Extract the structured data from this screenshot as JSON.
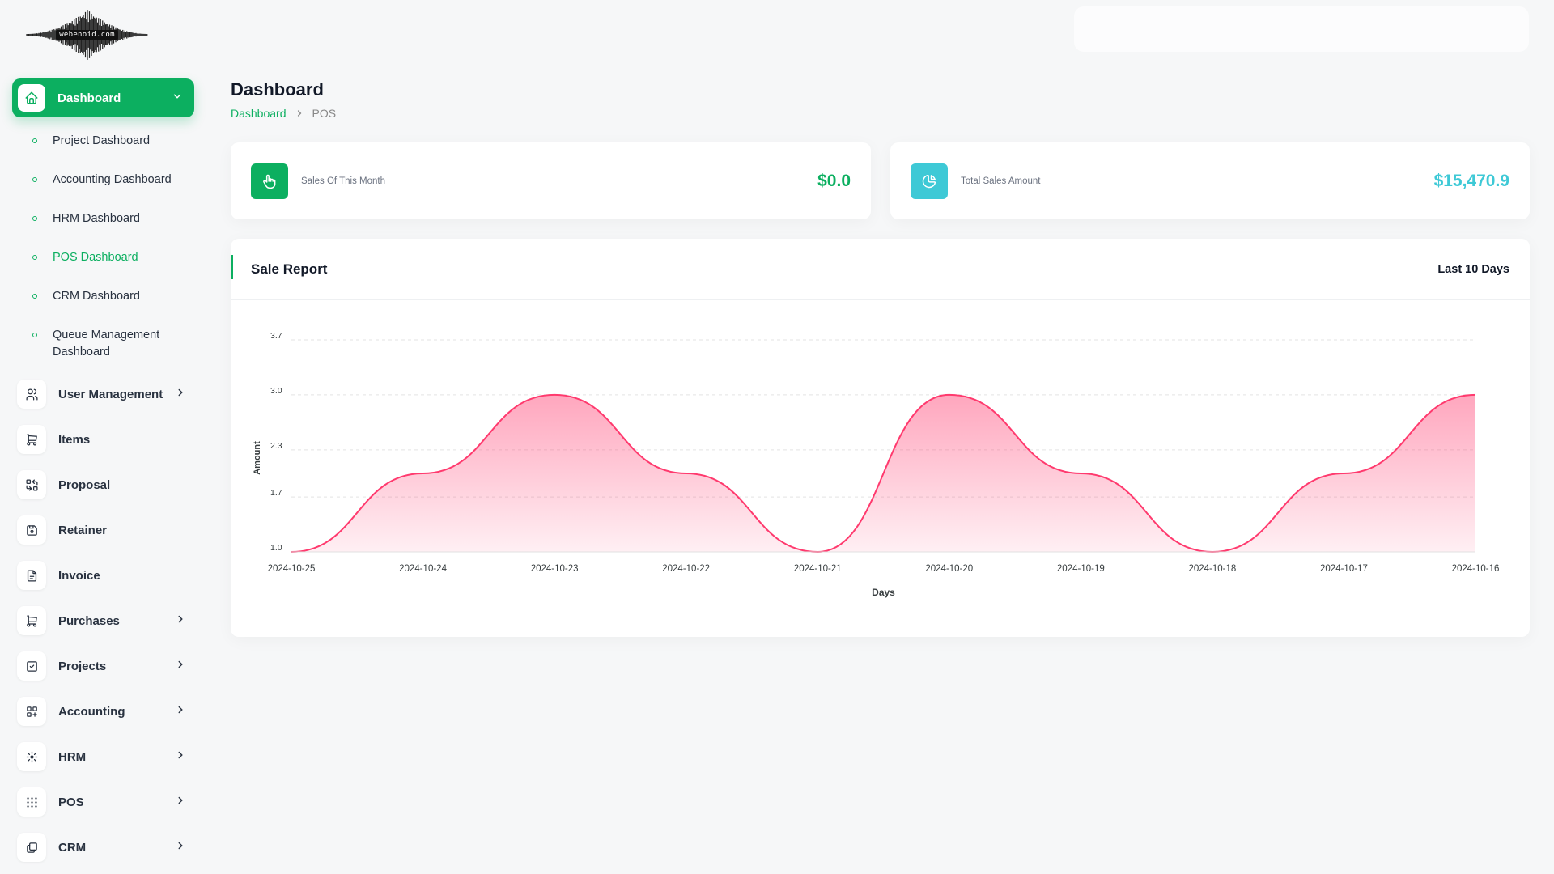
{
  "logo": {
    "text": "webenoid.com"
  },
  "sidebar": {
    "active": {
      "label": "Dashboard",
      "icon": "home-icon"
    },
    "sub_items": [
      {
        "label": "Project Dashboard"
      },
      {
        "label": "Accounting Dashboard"
      },
      {
        "label": "HRM Dashboard"
      },
      {
        "label": "POS Dashboard",
        "active": true
      },
      {
        "label": "CRM Dashboard"
      },
      {
        "label": "Queue Management Dashboard"
      }
    ],
    "items": [
      {
        "label": "User Management",
        "icon": "users-icon",
        "has_children": true
      },
      {
        "label": "Items",
        "icon": "cart-icon",
        "has_children": false
      },
      {
        "label": "Proposal",
        "icon": "replace-icon",
        "has_children": false
      },
      {
        "label": "Retainer",
        "icon": "save-icon",
        "has_children": false
      },
      {
        "label": "Invoice",
        "icon": "file-invoice-icon",
        "has_children": false
      },
      {
        "label": "Purchases",
        "icon": "shopping-cart-icon",
        "has_children": true
      },
      {
        "label": "Projects",
        "icon": "checkbox-icon",
        "has_children": true
      },
      {
        "label": "Accounting",
        "icon": "layout-grid-add-icon",
        "has_children": true
      },
      {
        "label": "HRM",
        "icon": "hrm-icon",
        "has_children": true
      },
      {
        "label": "POS",
        "icon": "grid-dots-icon",
        "has_children": true
      },
      {
        "label": "CRM",
        "icon": "layers-icon",
        "has_children": true
      }
    ]
  },
  "header": {
    "title": "Dashboard",
    "breadcrumb": {
      "home": "Dashboard",
      "current": "POS"
    }
  },
  "stats": [
    {
      "label": "Sales Of This Month",
      "value": "$0.0",
      "color": "#0caf60",
      "icon": "hand-finger-icon"
    },
    {
      "label": "Total Sales Amount",
      "value": "$15,470.9",
      "color": "#3ec9d6",
      "icon": "pie-chart-icon"
    }
  ],
  "report": {
    "title": "Sale Report",
    "filter": "Last 10 Days"
  },
  "chart_data": {
    "type": "area",
    "x": [
      "2024-10-25",
      "2024-10-24",
      "2024-10-23",
      "2024-10-22",
      "2024-10-21",
      "2024-10-20",
      "2024-10-19",
      "2024-10-18",
      "2024-10-17",
      "2024-10-16"
    ],
    "series": [
      {
        "values": [
          1,
          2,
          3,
          2,
          1,
          3,
          2,
          1,
          2,
          3
        ]
      }
    ],
    "xlabel": "Days",
    "ylabel": "Amount",
    "yticks": [
      "3.7",
      "3.0",
      "2.3",
      "1.7",
      "1.0"
    ],
    "ylim": [
      1.0,
      3.7
    ],
    "grid": true,
    "color": "#ff3a6e"
  }
}
